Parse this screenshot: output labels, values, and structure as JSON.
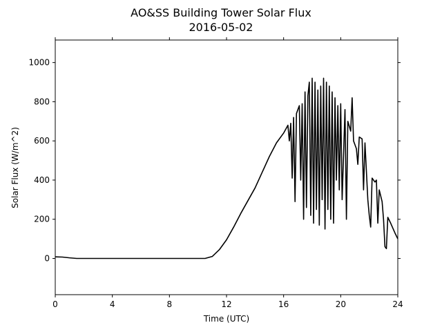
{
  "chart_data": {
    "type": "line",
    "title": "AO&SS Building Tower Solar Flux",
    "subtitle": "2016-05-02",
    "x_label": "Time (UTC)",
    "y_label": "Solar Flux (W/m^2)",
    "xlim": [
      0,
      24
    ],
    "xticks": [
      0,
      4,
      8,
      12,
      16,
      20,
      24
    ],
    "ylim": [
      -185,
      1115
    ],
    "yticks": [
      0,
      200,
      400,
      600,
      800,
      1000
    ],
    "series": [
      {
        "color": "#000000",
        "x": [
          0,
          0.5,
          1,
          1.5,
          3,
          6,
          9,
          10.5,
          11,
          11.5,
          12,
          12.5,
          13,
          14,
          14.5,
          15,
          15.5,
          16,
          16.3,
          16.4,
          16.5,
          16.6,
          16.7,
          16.8,
          16.9,
          17.1,
          17.2,
          17.3,
          17.4,
          17.5,
          17.6,
          17.7,
          17.8,
          17.9,
          18.0,
          18.1,
          18.2,
          18.3,
          18.4,
          18.5,
          18.6,
          18.7,
          18.8,
          18.9,
          19.0,
          19.1,
          19.2,
          19.3,
          19.4,
          19.5,
          19.6,
          19.7,
          19.8,
          19.9,
          20.0,
          20.1,
          20.3,
          20.4,
          20.5,
          20.7,
          20.8,
          20.9,
          21.0,
          21.1,
          21.2,
          21.3,
          21.5,
          21.6,
          21.7,
          21.9,
          22.0,
          22.1,
          22.2,
          22.4,
          22.5,
          22.6,
          22.7,
          22.9,
          23.0,
          23.1,
          23.2,
          23.3,
          23.5,
          23.8,
          24
        ],
        "values": [
          8,
          7,
          3,
          0,
          0,
          0,
          0,
          0,
          10,
          45,
          95,
          160,
          230,
          360,
          440,
          520,
          590,
          640,
          680,
          600,
          690,
          410,
          720,
          290,
          740,
          780,
          400,
          790,
          200,
          850,
          260,
          830,
          900,
          220,
          920,
          180,
          900,
          250,
          860,
          170,
          880,
          300,
          920,
          150,
          900,
          250,
          880,
          200,
          850,
          180,
          820,
          400,
          780,
          350,
          790,
          300,
          760,
          200,
          700,
          650,
          820,
          600,
          580,
          560,
          480,
          620,
          610,
          350,
          590,
          300,
          220,
          160,
          410,
          390,
          400,
          180,
          350,
          290,
          200,
          60,
          50,
          210,
          180,
          130,
          100
        ]
      }
    ]
  }
}
